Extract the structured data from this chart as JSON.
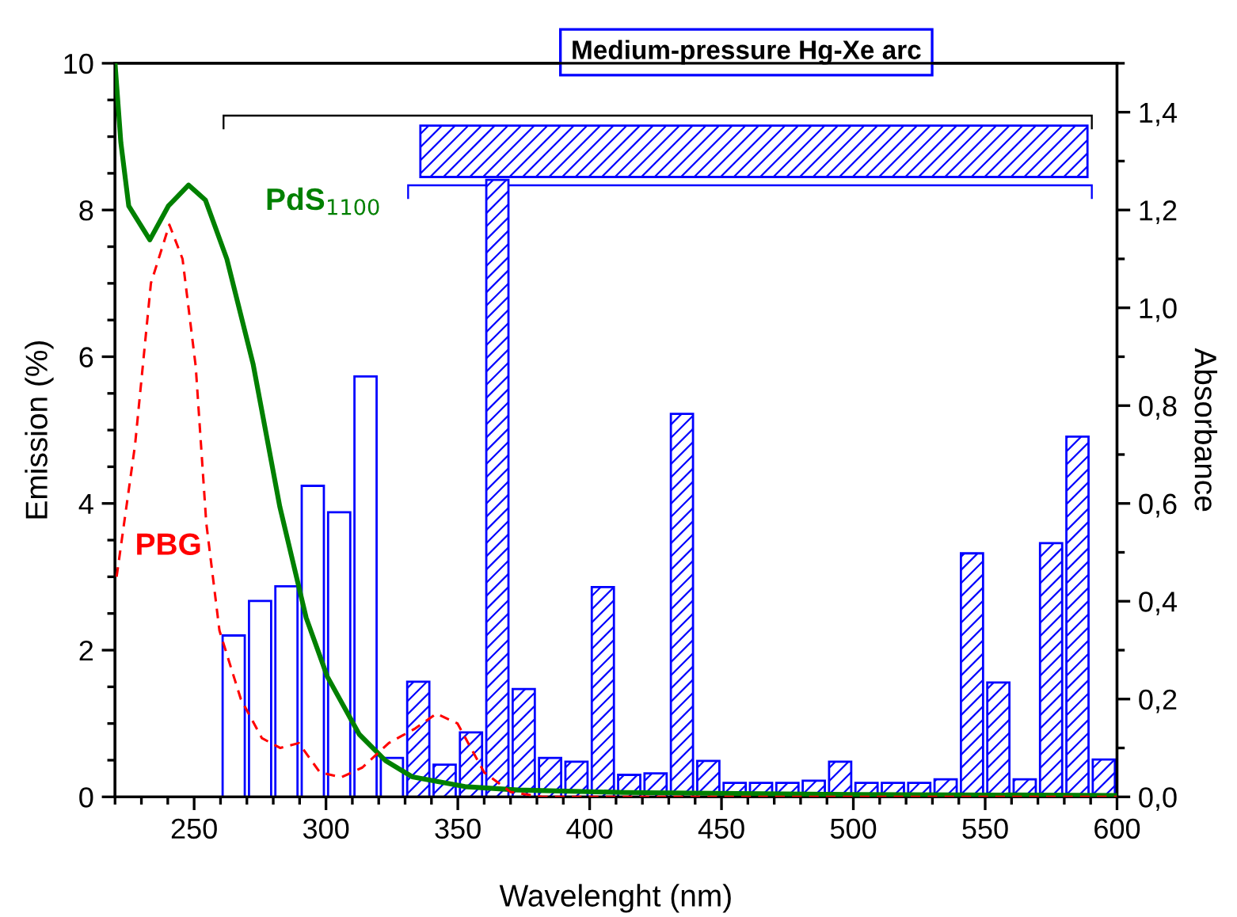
{
  "chart_data": {
    "type": "bar",
    "title": "Medium-pressure Hg-Xe arc",
    "xlabel": "Wavelenght (nm)",
    "ylabel": "Emission (%)",
    "y2label": "Absorbance",
    "xlim": [
      220,
      600
    ],
    "xticks": [
      250,
      300,
      350,
      400,
      450,
      500,
      550,
      600
    ],
    "ylim": [
      0,
      10
    ],
    "yticks": [
      0,
      2,
      4,
      6,
      8,
      10
    ],
    "y2lim": [
      0,
      1.5
    ],
    "y2ticks": [
      {
        "value": 0,
        "label": "0,0"
      },
      {
        "value": 0.2,
        "label": "0,2"
      },
      {
        "value": 0.4,
        "label": "0,4"
      },
      {
        "value": 0.6,
        "label": "0,6"
      },
      {
        "value": 0.8,
        "label": "0,8"
      },
      {
        "value": 1.0,
        "label": "1,0"
      },
      {
        "value": 1.2,
        "label": "1,2"
      },
      {
        "value": 1.4,
        "label": "1,4"
      }
    ],
    "series": [
      {
        "type": "bar",
        "color": "#0000ff",
        "x": [
          265,
          275,
          285,
          295,
          305,
          315,
          325
        ],
        "values": [
          2.2,
          2.67,
          2.87,
          4.24,
          3.88,
          5.73,
          0.53
        ]
      },
      {
        "type": "bar",
        "color": "#0000ff",
        "x": [
          335,
          345,
          355,
          365,
          375,
          385,
          395,
          405,
          415,
          425,
          435,
          445,
          455,
          465,
          475,
          485,
          495,
          505,
          515,
          525,
          535,
          545,
          555,
          565,
          575,
          585,
          595
        ],
        "values": [
          1.57,
          0.44,
          0.88,
          8.41,
          1.47,
          0.53,
          0.48,
          2.86,
          0.3,
          0.32,
          5.22,
          0.49,
          0.19,
          0.19,
          0.19,
          0.22,
          0.48,
          0.19,
          0.19,
          0.19,
          0.24,
          3.32,
          1.56,
          0.24,
          3.46,
          4.91,
          0.51
        ]
      },
      {
        "type": "line",
        "name": "PdS$_{1100}$",
        "color": "#008000",
        "axis": "y2",
        "line_style": "solid",
        "x": [
          220,
          222.2,
          225.2,
          233.2,
          240.2,
          247.9,
          254.3,
          262.4,
          272.4,
          282.5,
          292.5,
          300.5,
          312.6,
          322.6,
          332.7,
          352.7,
          372.8,
          413,
          500,
          600
        ],
        "values": [
          1.5,
          1.338,
          1.208,
          1.139,
          1.208,
          1.251,
          1.22,
          1.1,
          0.884,
          0.593,
          0.366,
          0.246,
          0.128,
          0.074,
          0.041,
          0.021,
          0.014,
          0.009,
          0.005,
          0.003
        ]
      },
      {
        "type": "line",
        "name": "PBG",
        "color": "#ff0000",
        "axis": "y2",
        "line_style": "dashed",
        "x": [
          220.6,
          227.6,
          233.6,
          240.6,
          245.6,
          250.6,
          254.6,
          259.6,
          267.7,
          275.7,
          282.7,
          289.7,
          297.7,
          305.8,
          313.8,
          323.8,
          333.9,
          341.9,
          349.9,
          360,
          370,
          382,
          600
        ],
        "values": [
          0.45,
          0.72,
          1.05,
          1.17,
          1.1,
          0.88,
          0.56,
          0.34,
          0.2,
          0.12,
          0.1,
          0.11,
          0.05,
          0.04,
          0.06,
          0.11,
          0.14,
          0.17,
          0.15,
          0.05,
          0.01,
          0.0,
          0.0
        ]
      }
    ],
    "grid": false,
    "legend": false
  }
}
